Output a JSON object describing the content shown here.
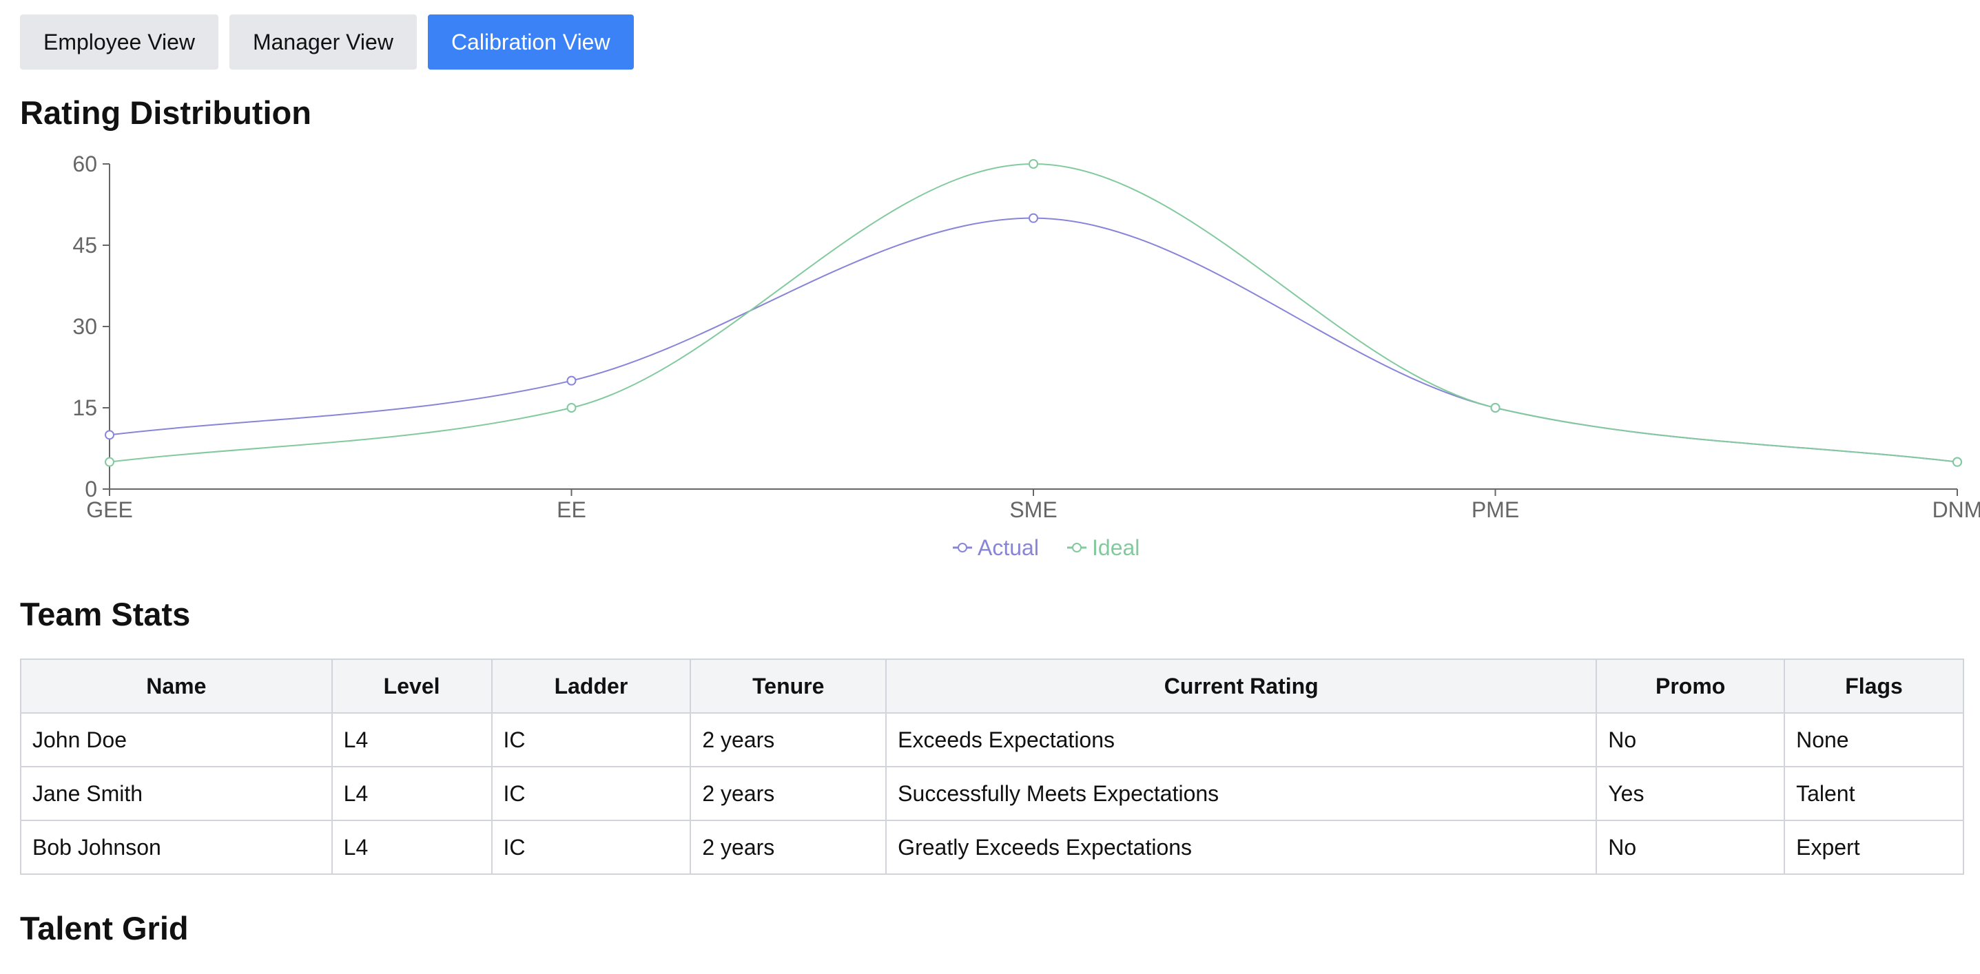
{
  "tabs": [
    {
      "label": "Employee View",
      "active": false
    },
    {
      "label": "Manager View",
      "active": false
    },
    {
      "label": "Calibration View",
      "active": true
    }
  ],
  "sections": {
    "rating_distribution": "Rating Distribution",
    "team_stats": "Team Stats",
    "talent_grid": "Talent Grid"
  },
  "chart_data": {
    "type": "line",
    "title": "Rating Distribution",
    "categories": [
      "GEE",
      "EE",
      "SME",
      "PME",
      "DNM"
    ],
    "series": [
      {
        "name": "Actual",
        "values": [
          10,
          20,
          50,
          15,
          5
        ],
        "color": "#8884d8"
      },
      {
        "name": "Ideal",
        "values": [
          5,
          15,
          60,
          15,
          5
        ],
        "color": "#82ca9d"
      }
    ],
    "ylim": [
      0,
      60
    ],
    "yticks": [
      0,
      15,
      30,
      45,
      60
    ],
    "grid": false,
    "legend": "bottom-center",
    "curve": "monotone"
  },
  "team_stats": {
    "columns": [
      "Name",
      "Level",
      "Ladder",
      "Tenure",
      "Current Rating",
      "Promo",
      "Flags"
    ],
    "rows": [
      [
        "John Doe",
        "L4",
        "IC",
        "2 years",
        "Exceeds Expectations",
        "No",
        "None"
      ],
      [
        "Jane Smith",
        "L4",
        "IC",
        "2 years",
        "Successfully Meets Expectations",
        "Yes",
        "Talent"
      ],
      [
        "Bob Johnson",
        "L4",
        "IC",
        "2 years",
        "Greatly Exceeds Expectations",
        "No",
        "Expert"
      ]
    ]
  }
}
